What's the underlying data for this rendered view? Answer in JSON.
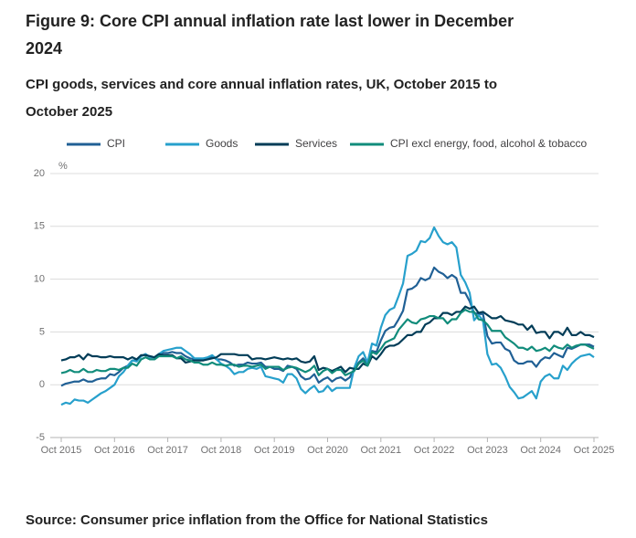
{
  "chart_data": {
    "type": "line",
    "title": "Figure 9: Core CPI annual inflation rate last lower in December 2024",
    "subtitle": "CPI goods, services and core annual inflation rates, UK, October 2015 to October 2025",
    "y_label": "%",
    "source": "Source: Consumer price inflation from the Office for National Statistics",
    "categories": [
      "Oct 2015",
      null,
      null,
      null,
      null,
      null,
      null,
      null,
      null,
      null,
      null,
      null,
      "Oct 2016",
      null,
      null,
      null,
      null,
      null,
      null,
      null,
      null,
      null,
      null,
      null,
      "Oct 2017",
      null,
      null,
      null,
      null,
      null,
      null,
      null,
      null,
      null,
      null,
      null,
      "Oct 2018",
      null,
      null,
      null,
      null,
      null,
      null,
      null,
      null,
      null,
      null,
      null,
      "Oct 2019",
      null,
      null,
      null,
      null,
      null,
      null,
      null,
      null,
      null,
      null,
      null,
      "Oct 2020",
      null,
      null,
      null,
      null,
      null,
      null,
      null,
      null,
      null,
      null,
      null,
      "Oct 2021",
      null,
      null,
      null,
      null,
      null,
      null,
      null,
      null,
      null,
      null,
      null,
      "Oct 2022",
      null,
      null,
      null,
      null,
      null,
      null,
      null,
      null,
      null,
      null,
      null,
      "Oct 2023",
      null,
      null,
      null,
      null,
      null,
      null,
      null,
      null,
      null,
      null,
      null,
      "Oct 2024",
      null,
      null,
      null,
      null,
      null,
      null,
      null,
      null,
      null,
      null,
      null,
      "Oct 2025"
    ],
    "ylim": [
      -5,
      20
    ],
    "yticks": [
      20,
      15,
      10,
      5,
      0,
      -5
    ],
    "grid": true,
    "series": [
      {
        "name": "CPI",
        "color": "#206095",
        "values": [
          -0.1,
          0.1,
          0.2,
          0.3,
          0.3,
          0.5,
          0.3,
          0.3,
          0.5,
          0.6,
          0.6,
          1.0,
          0.9,
          1.2,
          1.6,
          1.8,
          2.3,
          2.3,
          2.7,
          2.9,
          2.6,
          2.6,
          2.9,
          3.0,
          3.0,
          3.1,
          3.0,
          3.0,
          2.7,
          2.5,
          2.4,
          2.4,
          2.4,
          2.5,
          2.7,
          2.4,
          2.4,
          2.3,
          2.1,
          1.8,
          1.9,
          1.9,
          2.1,
          2.0,
          2.0,
          2.1,
          1.7,
          1.7,
          1.5,
          1.5,
          1.3,
          1.8,
          1.7,
          1.5,
          0.8,
          0.5,
          0.6,
          1.0,
          0.2,
          0.5,
          0.7,
          0.3,
          0.6,
          0.7,
          0.4,
          0.7,
          1.5,
          2.1,
          2.5,
          2.0,
          3.2,
          3.1,
          4.2,
          5.1,
          5.4,
          5.5,
          6.2,
          7.0,
          9.0,
          9.1,
          9.4,
          10.1,
          9.9,
          10.1,
          11.1,
          10.7,
          10.5,
          10.1,
          10.4,
          10.1,
          8.7,
          8.7,
          7.9,
          6.8,
          6.7,
          6.7,
          4.6,
          3.9,
          4.0,
          4.0,
          3.4,
          3.2,
          2.3,
          2.0,
          2.0,
          2.2,
          2.2,
          1.7,
          2.3,
          2.6,
          2.5,
          3.0,
          2.8,
          2.6,
          3.5,
          3.4,
          3.6,
          3.8,
          3.8,
          3.8,
          3.6
        ]
      },
      {
        "name": "Goods",
        "color": "#27a0cc",
        "values": [
          -1.9,
          -1.7,
          -1.8,
          -1.4,
          -1.5,
          -1.5,
          -1.7,
          -1.4,
          -1.1,
          -0.8,
          -0.6,
          -0.3,
          0.0,
          0.8,
          1.2,
          1.8,
          2.3,
          2.2,
          2.7,
          2.9,
          2.6,
          2.6,
          2.9,
          3.2,
          3.3,
          3.4,
          3.5,
          3.5,
          3.2,
          2.9,
          2.5,
          2.5,
          2.5,
          2.6,
          2.8,
          2.4,
          2.0,
          1.8,
          1.5,
          1.0,
          1.2,
          1.2,
          1.5,
          1.6,
          1.5,
          1.7,
          0.8,
          0.7,
          0.6,
          0.5,
          0.2,
          1.0,
          1.0,
          0.6,
          -0.4,
          -0.8,
          -0.4,
          -0.1,
          -0.7,
          -0.6,
          -0.1,
          -0.6,
          -0.3,
          -0.3,
          -0.3,
          -0.3,
          1.6,
          2.7,
          3.1,
          2.1,
          3.9,
          3.7,
          5.4,
          6.6,
          7.1,
          7.3,
          8.4,
          9.6,
          12.2,
          12.4,
          12.7,
          13.6,
          13.5,
          13.9,
          14.9,
          14.1,
          13.5,
          13.3,
          13.5,
          13.0,
          10.4,
          9.7,
          8.7,
          6.1,
          6.6,
          6.1,
          2.9,
          1.9,
          2.0,
          1.6,
          0.8,
          -0.2,
          -0.7,
          -1.3,
          -1.2,
          -0.9,
          -0.6,
          -1.3,
          0.3,
          0.8,
          1.0,
          0.6,
          0.6,
          1.8,
          1.4,
          2.0,
          2.4,
          2.7,
          2.8,
          2.9,
          2.6
        ]
      },
      {
        "name": "Services",
        "color": "#003c57",
        "values": [
          2.3,
          2.4,
          2.6,
          2.6,
          2.8,
          2.4,
          2.9,
          2.7,
          2.7,
          2.6,
          2.6,
          2.7,
          2.6,
          2.6,
          2.6,
          2.4,
          2.6,
          2.4,
          2.8,
          2.8,
          2.7,
          2.6,
          2.9,
          2.8,
          2.8,
          2.8,
          2.5,
          2.5,
          2.1,
          2.2,
          2.3,
          2.3,
          2.3,
          2.4,
          2.5,
          2.6,
          2.9,
          2.9,
          2.9,
          2.9,
          2.8,
          2.8,
          2.8,
          2.4,
          2.5,
          2.5,
          2.4,
          2.5,
          2.6,
          2.5,
          2.4,
          2.5,
          2.4,
          2.5,
          2.2,
          2.1,
          2.2,
          2.7,
          1.4,
          1.6,
          1.5,
          1.3,
          1.5,
          1.7,
          1.2,
          1.6,
          1.5,
          1.5,
          2.0,
          1.8,
          2.7,
          2.4,
          2.9,
          3.5,
          3.7,
          3.7,
          3.9,
          4.3,
          4.7,
          4.7,
          5.0,
          5.0,
          5.7,
          5.9,
          6.3,
          6.3,
          6.8,
          6.8,
          6.6,
          6.9,
          6.9,
          7.4,
          7.2,
          7.4,
          6.8,
          6.9,
          6.6,
          6.3,
          6.3,
          6.5,
          6.1,
          6.0,
          5.9,
          5.7,
          5.7,
          5.2,
          5.6,
          4.9,
          5.0,
          5.0,
          4.4,
          5.0,
          5.0,
          4.7,
          5.4,
          4.7,
          4.7,
          5.0,
          4.7,
          4.7,
          4.5
        ]
      },
      {
        "name": "CPI excl energy, food, alcohol & tobacco",
        "color": "#118c7b",
        "values": [
          1.1,
          1.2,
          1.4,
          1.2,
          1.2,
          1.5,
          1.2,
          1.2,
          1.4,
          1.3,
          1.3,
          1.5,
          1.5,
          1.4,
          1.6,
          1.6,
          2.0,
          1.8,
          2.4,
          2.6,
          2.4,
          2.4,
          2.7,
          2.7,
          2.7,
          2.7,
          2.5,
          2.7,
          2.4,
          2.3,
          2.1,
          2.1,
          1.9,
          1.9,
          2.1,
          1.9,
          1.9,
          1.8,
          1.9,
          1.9,
          1.7,
          1.8,
          1.8,
          1.7,
          1.8,
          1.9,
          1.5,
          1.7,
          1.7,
          1.7,
          1.4,
          1.6,
          1.7,
          1.6,
          1.4,
          1.2,
          1.4,
          1.8,
          0.9,
          1.3,
          1.5,
          1.1,
          1.4,
          1.4,
          0.9,
          1.1,
          1.3,
          2.0,
          2.3,
          1.8,
          3.1,
          2.9,
          3.4,
          4.0,
          4.2,
          4.4,
          5.2,
          5.7,
          6.2,
          5.9,
          5.8,
          6.2,
          6.3,
          6.5,
          6.5,
          6.3,
          6.3,
          5.8,
          6.2,
          6.2,
          6.8,
          7.1,
          6.9,
          6.9,
          6.2,
          6.1,
          5.7,
          5.1,
          5.1,
          5.1,
          4.5,
          4.2,
          3.9,
          3.5,
          3.5,
          3.3,
          3.6,
          3.2,
          3.3,
          3.5,
          3.2,
          3.7,
          3.5,
          3.4,
          3.8,
          3.5,
          3.7,
          3.8,
          3.8,
          3.6,
          3.4
        ]
      }
    ]
  }
}
